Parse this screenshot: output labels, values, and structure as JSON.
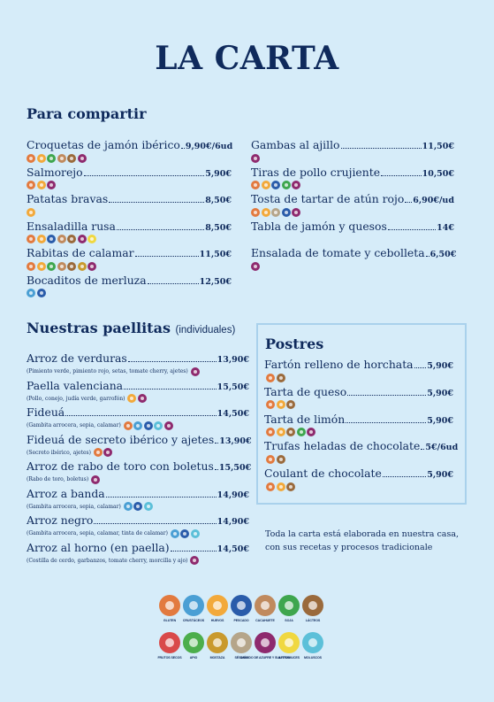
{
  "title": "LA CARTA",
  "colors": {
    "background": "#d6ecf9",
    "text": "#0f2a5c",
    "gluten": "#e27a3f",
    "crustaceos": "#4a9fd4",
    "huevos": "#f2a93b",
    "pescado": "#2a5caa",
    "cacahuete": "#c08a5e",
    "soja": "#3ea64e",
    "lacteos": "#9a6a3c",
    "frutos_secos": "#d94a4a",
    "apio": "#4cae4c",
    "mostaza": "#c99a2e",
    "sesamo": "#b5a58a",
    "sulfitos": "#8e2a6e",
    "altramuces": "#f0d840",
    "moluscos": "#5cc0d9"
  },
  "para_compartir": {
    "title": "Para compartir",
    "left": [
      {
        "name": "Croquetas de jamón ibérico",
        "price": "9,90€/6ud",
        "allergens": [
          "gluten",
          "huevos",
          "soja",
          "cacahuete",
          "lacteos",
          "sulfitos"
        ]
      },
      {
        "name": "Salmorejo",
        "price": "5,90€",
        "allergens": [
          "gluten",
          "huevos",
          "sulfitos"
        ]
      },
      {
        "name": "Patatas bravas",
        "price": "8,50€",
        "allergens": [
          "huevos"
        ]
      },
      {
        "name": "Ensaladilla rusa",
        "price": "8,50€",
        "allergens": [
          "gluten",
          "huevos",
          "pescado",
          "cacahuete",
          "lacteos",
          "sulfitos",
          "altramuces"
        ]
      },
      {
        "name": "Rabitas de calamar",
        "price": "11,50€",
        "allergens": [
          "gluten",
          "huevos",
          "soja",
          "cacahuete",
          "lacteos",
          "mostaza",
          "sulfitos"
        ]
      },
      {
        "name": "Bocaditos de merluza",
        "price": "12,50€",
        "allergens": [
          "crustaceos",
          "pescado"
        ]
      }
    ],
    "right": [
      {
        "name": "Gambas al ajillo",
        "price": "11,50€",
        "allergens": [
          "sulfitos"
        ]
      },
      {
        "name": "Tiras de pollo crujiente",
        "price": "10,50€",
        "allergens": [
          "gluten",
          "huevos",
          "pescado",
          "soja",
          "sulfitos"
        ]
      },
      {
        "name": "Tosta de tartar de atún rojo",
        "price": "6,90€/ud",
        "allergens": [
          "gluten",
          "huevos",
          "sesamo",
          "pescado",
          "sulfitos"
        ]
      },
      {
        "name": "Tabla de jamón y quesos",
        "price": "14€",
        "allergens": []
      },
      {
        "name": "Ensalada de tomate y cebolleta",
        "price": "6,50€",
        "allergens": [
          "sulfitos"
        ]
      }
    ]
  },
  "paellitas": {
    "title": "Nuestras paellitas",
    "subtitle": "(individuales)",
    "items": [
      {
        "name": "Arroz de verduras",
        "price": "13,90€",
        "desc": "(Pimiento verde, pimiento rojo, setas, tomate cherry, ajetes)",
        "allergens": [
          "sulfitos"
        ]
      },
      {
        "name": "Paella valenciana",
        "price": "15,50€",
        "desc": "(Pollo, conejo, judía verde, garrofón)",
        "allergens": [
          "huevos",
          "sulfitos"
        ]
      },
      {
        "name": "Fideuá",
        "price": "14,50€",
        "desc": "(Gambita arrocera, sepia, calamar)",
        "allergens": [
          "gluten",
          "crustaceos",
          "pescado",
          "moluscos",
          "sulfitos"
        ]
      },
      {
        "name": "Fideuá de secreto ibérico y ajetes",
        "price": "13,90€",
        "desc": "(Secreto ibérico, ajetes)",
        "allergens": [
          "gluten",
          "sulfitos"
        ]
      },
      {
        "name": "Arroz de rabo de toro con boletus",
        "price": "15,50€",
        "desc": "(Rabo de toro, boletus)",
        "allergens": [
          "sulfitos"
        ]
      },
      {
        "name": "Arroz a banda",
        "price": "14,90€",
        "desc": "(Gambita arrocera, sepia, calamar)",
        "allergens": [
          "crustaceos",
          "pescado",
          "moluscos"
        ]
      },
      {
        "name": "Arroz negro",
        "price": "14,90€",
        "desc": "(Gambita arrocera, sepia, calamar, tinta de calamar)",
        "allergens": [
          "crustaceos",
          "pescado",
          "moluscos"
        ]
      },
      {
        "name": "Arroz al horno (en paella)",
        "price": "14,50€",
        "desc": "(Costilla de cerdo, garbanzos, tomate cherry, morcilla y ajo)",
        "allergens": [
          "sulfitos"
        ]
      }
    ]
  },
  "postres": {
    "title": "Postres",
    "items": [
      {
        "name": "Fartón relleno de horchata",
        "price": "5,90€",
        "allergens": [
          "gluten",
          "lacteos"
        ]
      },
      {
        "name": "Tarta de queso",
        "price": "5,90€",
        "allergens": [
          "gluten",
          "huevos",
          "lacteos"
        ]
      },
      {
        "name": "Tarta de limón",
        "price": "5,90€",
        "allergens": [
          "gluten",
          "huevos",
          "lacteos",
          "soja",
          "sulfitos"
        ]
      },
      {
        "name": "Trufas heladas de chocolate",
        "price": "5€/6ud",
        "allergens": [
          "gluten",
          "lacteos"
        ]
      },
      {
        "name": "Coulant de chocolate",
        "price": "5,90€",
        "allergens": [
          "gluten",
          "huevos",
          "lacteos"
        ]
      }
    ]
  },
  "note": {
    "line1": "Toda la carta está elaborada en nuestra casa,",
    "line2": "con sus recetas y procesos tradicionale"
  },
  "legend": {
    "row1": [
      {
        "key": "gluten",
        "label": "GLUTEN"
      },
      {
        "key": "crustaceos",
        "label": "CRUSTÁCEOS"
      },
      {
        "key": "huevos",
        "label": "HUEVOS"
      },
      {
        "key": "pescado",
        "label": "PESCADO"
      },
      {
        "key": "cacahuete",
        "label": "CACAHUETE"
      },
      {
        "key": "soja",
        "label": "SOJA"
      },
      {
        "key": "lacteos",
        "label": "LÁCTEOS"
      }
    ],
    "row2": [
      {
        "key": "frutos_secos",
        "label": "FRUTOS SECOS"
      },
      {
        "key": "apio",
        "label": "APIO"
      },
      {
        "key": "mostaza",
        "label": "MOSTAZA"
      },
      {
        "key": "sesamo",
        "label": "SÉSAMO"
      },
      {
        "key": "sulfitos",
        "label": "DIÓXIDO DE AZUFRE Y SULFITOS"
      },
      {
        "key": "altramuces",
        "label": "ALTRAMUCES"
      },
      {
        "key": "moluscos",
        "label": "MOLUSCOS"
      }
    ]
  }
}
